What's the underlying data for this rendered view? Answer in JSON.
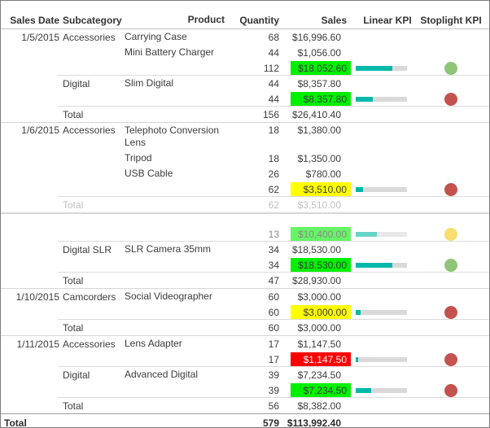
{
  "colors": {
    "highlight_green": "#00F000",
    "highlight_yellow": "#FFFF00",
    "highlight_red": "#FF0000",
    "highlight_red_text": "#FFFFFF",
    "kpi_bar": "#01B8AA",
    "kpi_track": "#D9D9D9",
    "stoplight_green": "#8EC578",
    "stoplight_red": "#C4524E",
    "stoplight_yellow": "#F2C80F",
    "body_text": "#3C3C3C"
  },
  "chart_data": {
    "type": "table",
    "columns": [
      "Sales Date",
      "Subcategory",
      "Product",
      "Quantity",
      "Sales",
      "Linear KPI",
      "Stoplight KPI"
    ],
    "rows": [
      {
        "type": "detail",
        "date": "1/5/2015",
        "subcategory": "Accessories",
        "product": "Carrying Case",
        "quantity": "68",
        "sales": "$16,996.60"
      },
      {
        "type": "detail",
        "date": "",
        "subcategory": "",
        "product": "Mini Battery Charger",
        "quantity": "44",
        "sales": "$1,056.00"
      },
      {
        "type": "subtotal",
        "quantity": "112",
        "sales": "$18,052.60",
        "highlight": "green",
        "linear_kpi_pct": 71,
        "stoplight": "green"
      },
      {
        "type": "detail",
        "date": "",
        "subcategory": "Digital",
        "product": "Slim Digital",
        "quantity": "44",
        "sales": "$8,357.80"
      },
      {
        "type": "subtotal",
        "quantity": "44",
        "sales": "$8,357.80",
        "highlight": "green",
        "linear_kpi_pct": 33,
        "stoplight": "red"
      },
      {
        "type": "group-total",
        "label": "Total",
        "quantity": "156",
        "sales": "$26,410.40"
      },
      {
        "type": "detail",
        "date": "1/6/2015",
        "subcategory": "Accessories",
        "product": "Telephoto Conversion Lens",
        "quantity": "18",
        "sales": "$1,380.00"
      },
      {
        "type": "detail",
        "date": "",
        "subcategory": "",
        "product": "Tripod",
        "quantity": "18",
        "sales": "$1,350.00"
      },
      {
        "type": "detail",
        "date": "",
        "subcategory": "",
        "product": "USB Cable",
        "quantity": "26",
        "sales": "$780.00"
      },
      {
        "type": "subtotal",
        "quantity": "62",
        "sales": "$3,510.00",
        "highlight": "yellow",
        "linear_kpi_pct": 14,
        "stoplight": "red"
      },
      {
        "type": "group-total",
        "label": "Total",
        "quantity": "62",
        "sales": "$3,510.00",
        "faded": true
      },
      {
        "type": "detail",
        "date": "",
        "subcategory": "",
        "product": "",
        "quantity": "",
        "sales": "",
        "faded": true
      },
      {
        "type": "subtotal",
        "quantity": "13",
        "sales": "$10,400.00",
        "highlight": "green",
        "linear_kpi_pct": 41,
        "stoplight": "yellow",
        "faded": true
      },
      {
        "type": "detail",
        "date": "",
        "subcategory": "Digital SLR",
        "product": "SLR Camera 35mm",
        "quantity": "34",
        "sales": "$18,530.00"
      },
      {
        "type": "subtotal",
        "quantity": "34",
        "sales": "$18,530.00",
        "highlight": "green",
        "linear_kpi_pct": 72,
        "stoplight": "green"
      },
      {
        "type": "group-total",
        "label": "Total",
        "quantity": "47",
        "sales": "$28,930.00"
      },
      {
        "type": "detail",
        "date": "1/10/2015",
        "subcategory": "Camcorders",
        "product": "Social Videographer",
        "quantity": "60",
        "sales": "$3,000.00"
      },
      {
        "type": "subtotal",
        "quantity": "60",
        "sales": "$3,000.00",
        "highlight": "yellow",
        "linear_kpi_pct": 9,
        "stoplight": "red"
      },
      {
        "type": "group-total",
        "label": "Total",
        "quantity": "60",
        "sales": "$3,000.00"
      },
      {
        "type": "detail",
        "date": "1/11/2015",
        "subcategory": "Accessories",
        "product": "Lens Adapter",
        "quantity": "17",
        "sales": "$1,147.50"
      },
      {
        "type": "subtotal",
        "quantity": "17",
        "sales": "$1,147.50",
        "highlight": "red",
        "linear_kpi_pct": 4,
        "stoplight": "red"
      },
      {
        "type": "detail",
        "date": "",
        "subcategory": "Digital",
        "product": "Advanced Digital",
        "quantity": "39",
        "sales": "$7,234.50"
      },
      {
        "type": "subtotal",
        "quantity": "39",
        "sales": "$7,234.50",
        "highlight": "green",
        "linear_kpi_pct": 30,
        "stoplight": "red"
      },
      {
        "type": "group-total",
        "label": "Total",
        "quantity": "56",
        "sales": "$8,382.00"
      },
      {
        "type": "grand-total",
        "label": "Total",
        "quantity": "579",
        "sales": "$113,992.40"
      }
    ]
  }
}
